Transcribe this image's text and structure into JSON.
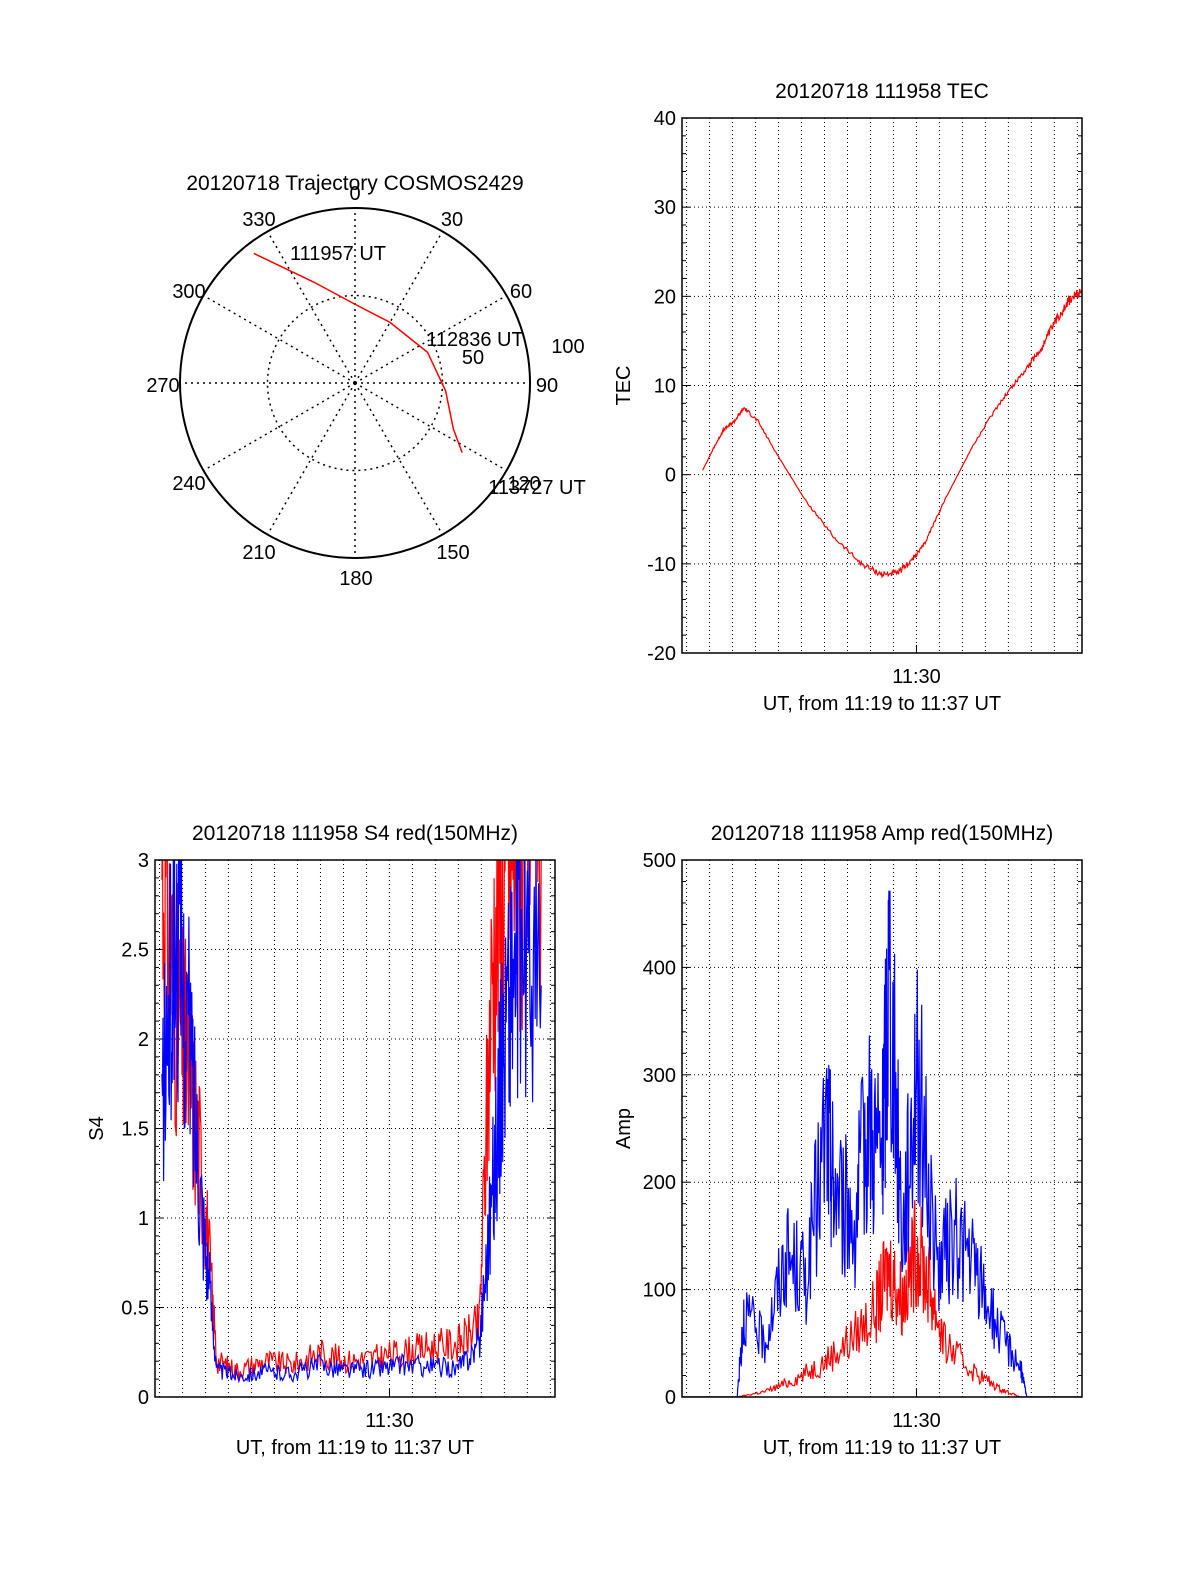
{
  "polar": {
    "title": "20120718 Trajectory COSMOS2429",
    "azimuth_labels": [
      "0",
      "30",
      "60",
      "90",
      "120",
      "150",
      "180",
      "210",
      "240",
      "270",
      "300",
      "330"
    ],
    "elevation_labels": [
      "50",
      "100"
    ],
    "trajectory_labels": [
      "111957 UT",
      "112836 UT",
      "113727 UT"
    ]
  },
  "chart_data": [
    {
      "id": "trajectory",
      "type": "polar",
      "title": "20120718 Trajectory COSMOS2429",
      "radial_range": [
        0,
        100
      ],
      "points": [
        {
          "label": "111957 UT",
          "azimuth": 322,
          "r": 94
        },
        {
          "azimuth": 338,
          "r": 62
        },
        {
          "azimuth": 0,
          "r": 45
        },
        {
          "azimuth": 30,
          "r": 40
        },
        {
          "label": "112836 UT",
          "azimuth": 67,
          "r": 45
        },
        {
          "azimuth": 95,
          "r": 52
        },
        {
          "azimuth": 115,
          "r": 62
        },
        {
          "label": "113727 UT",
          "azimuth": 123,
          "r": 73
        }
      ],
      "color": "#ff0000"
    },
    {
      "id": "tec",
      "type": "line",
      "title": "20120718 111958 TEC",
      "xlabel": "UT, from 11:19 to 11:37 UT",
      "ylabel": "TEC",
      "xlim": [
        11.33,
        11.62
      ],
      "x_tick_label": "11:30",
      "x_tick_value": 11.5,
      "ylim": [
        -20,
        40
      ],
      "yticks": [
        "-20",
        "-10",
        "0",
        "10",
        "20",
        "30",
        "40"
      ],
      "grid": true,
      "series": [
        {
          "color": "#ff0000",
          "x": [
            11.345,
            11.353,
            11.36,
            11.368,
            11.375,
            11.385,
            11.4,
            11.42,
            11.44,
            11.46,
            11.475,
            11.487,
            11.497,
            11.505,
            11.52,
            11.54,
            11.56,
            11.575,
            11.59,
            11.6,
            11.61,
            11.62
          ],
          "y": [
            0.5,
            3,
            5,
            6,
            7.5,
            6,
            2,
            -3,
            -7,
            -10,
            -11.2,
            -11,
            -9.5,
            -8,
            -3,
            3,
            8,
            11,
            14,
            17,
            19.5,
            20.5
          ]
        }
      ]
    },
    {
      "id": "s4",
      "type": "line",
      "title": "20120718 111958 S4 red(150MHz)",
      "xlabel": "UT, from 11:19 to 11:37 UT",
      "ylabel": "S4",
      "xlim": [
        11.33,
        11.62
      ],
      "x_tick_label": "11:30",
      "x_tick_value": 11.5,
      "ylim": [
        0,
        3
      ],
      "yticks": [
        "0",
        "0.5",
        "1",
        "1.5",
        "2",
        "2.5",
        "3"
      ],
      "grid": true,
      "series": [
        {
          "color": "#ff0000",
          "x": [
            11.335,
            11.345,
            11.355,
            11.365,
            11.375,
            11.39,
            11.41,
            11.43,
            11.45,
            11.47,
            11.49,
            11.51,
            11.53,
            11.55,
            11.565,
            11.575,
            11.585,
            11.595,
            11.61
          ],
          "y": [
            3,
            2.2,
            1.8,
            1.2,
            0.2,
            0.15,
            0.2,
            0.18,
            0.25,
            0.2,
            0.22,
            0.25,
            0.28,
            0.3,
            0.4,
            2.5,
            3,
            3,
            3
          ]
        },
        {
          "color": "#0000ff",
          "x": [
            11.335,
            11.345,
            11.355,
            11.365,
            11.375,
            11.39,
            11.41,
            11.43,
            11.45,
            11.47,
            11.49,
            11.51,
            11.53,
            11.55,
            11.565,
            11.575,
            11.585,
            11.595,
            11.61
          ],
          "y": [
            1.6,
            2.6,
            2.0,
            1.0,
            0.15,
            0.12,
            0.14,
            0.13,
            0.18,
            0.15,
            0.16,
            0.18,
            0.17,
            0.16,
            0.3,
            1.2,
            2.2,
            2.5,
            2.3
          ]
        }
      ]
    },
    {
      "id": "amp",
      "type": "line",
      "title": "20120718 111958 Amp red(150MHz)",
      "xlabel": "UT, from 11:19 to 11:37 UT",
      "ylabel": "Amp",
      "xlim": [
        11.33,
        11.62
      ],
      "x_tick_label": "11:30",
      "x_tick_value": 11.5,
      "ylim": [
        0,
        500
      ],
      "yticks": [
        "0",
        "100",
        "200",
        "300",
        "400",
        "500"
      ],
      "grid": true,
      "series": [
        {
          "color": "#ff0000",
          "x": [
            11.33,
            11.37,
            11.39,
            11.41,
            11.43,
            11.45,
            11.47,
            11.48,
            11.49,
            11.5,
            11.51,
            11.52,
            11.54,
            11.56,
            11.575,
            11.62
          ],
          "y": [
            0,
            0,
            5,
            15,
            30,
            50,
            80,
            120,
            90,
            140,
            100,
            50,
            25,
            8,
            0,
            0
          ]
        },
        {
          "color": "#0000ff",
          "x": [
            11.33,
            11.37,
            11.375,
            11.39,
            11.405,
            11.42,
            11.435,
            11.44,
            11.455,
            11.465,
            11.475,
            11.48,
            11.49,
            11.5,
            11.515,
            11.53,
            11.545,
            11.56,
            11.575,
            11.58,
            11.62
          ],
          "y": [
            0,
            0,
            80,
            50,
            130,
            110,
            250,
            200,
            160,
            260,
            220,
            400,
            150,
            310,
            120,
            150,
            110,
            60,
            30,
            0,
            0
          ]
        }
      ]
    }
  ]
}
